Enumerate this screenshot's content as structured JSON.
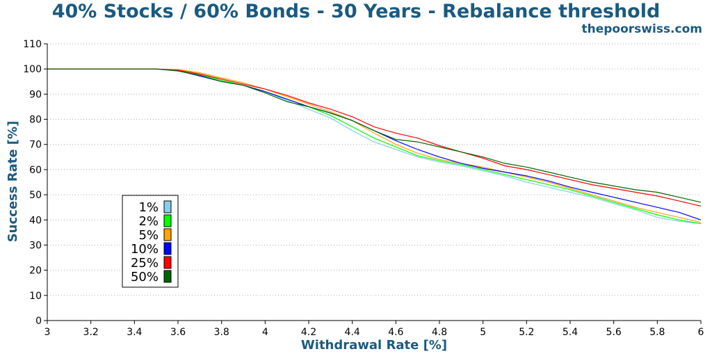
{
  "chart_data": {
    "type": "line",
    "title": "40% Stocks / 60% Bonds - 30 Years - Rebalance threshold",
    "watermark": "thepoorswiss.com",
    "xlabel": "Withdrawal Rate [%]",
    "ylabel": "Success Rate [%]",
    "xlim": [
      3,
      6
    ],
    "ylim": [
      0,
      110
    ],
    "xticks": [
      3,
      3.2,
      3.4,
      3.6,
      3.8,
      4,
      4.2,
      4.4,
      4.6,
      4.8,
      5,
      5.2,
      5.4,
      5.6,
      5.8,
      6
    ],
    "yticks": [
      0,
      10,
      20,
      30,
      40,
      50,
      60,
      70,
      80,
      90,
      100,
      110
    ],
    "grid": true,
    "legend_position": "lower-left",
    "series": [
      {
        "name": "1%",
        "color": "#87ceeb",
        "x": [
          3,
          3.5,
          3.6,
          3.7,
          3.8,
          3.9,
          4,
          4.1,
          4.2,
          4.3,
          4.4,
          4.5,
          4.6,
          4.7,
          4.8,
          4.9,
          5,
          5.1,
          5.2,
          5.3,
          5.4,
          5.5,
          5.6,
          5.7,
          5.8,
          5.9,
          6
        ],
        "y": [
          100,
          100,
          99.5,
          97.8,
          95.5,
          93.5,
          91,
          87.5,
          84,
          80.5,
          75.5,
          71,
          68,
          65,
          63,
          61.5,
          59.5,
          57.5,
          55,
          53,
          51,
          49,
          46.5,
          44,
          41,
          39.5,
          38.5
        ]
      },
      {
        "name": "2%",
        "color": "#00ff00",
        "x": [
          3,
          3.5,
          3.6,
          3.7,
          3.8,
          3.9,
          4,
          4.1,
          4.2,
          4.3,
          4.4,
          4.5,
          4.6,
          4.7,
          4.8,
          4.9,
          5,
          5.1,
          5.2,
          5.3,
          5.4,
          5.5,
          5.6,
          5.7,
          5.8,
          5.9,
          6
        ],
        "y": [
          100,
          100,
          99.5,
          98,
          95.5,
          93.5,
          91,
          88,
          85,
          81.5,
          77,
          72.5,
          69,
          65.5,
          63.5,
          62,
          60,
          58,
          56,
          54,
          52,
          49.5,
          47,
          44.5,
          42,
          40,
          38.5
        ]
      },
      {
        "name": "5%",
        "color": "#ffa500",
        "x": [
          3,
          3.5,
          3.6,
          3.7,
          3.8,
          3.9,
          4,
          4.1,
          4.2,
          4.3,
          4.4,
          4.5,
          4.6,
          4.7,
          4.8,
          4.9,
          5,
          5.1,
          5.2,
          5.3,
          5.4,
          5.5,
          5.6,
          5.7,
          5.8,
          5.9,
          6
        ],
        "y": [
          100,
          100,
          99.8,
          98.5,
          96.5,
          94.5,
          92,
          89,
          86,
          83,
          79.5,
          74.5,
          70,
          66.5,
          64,
          62.5,
          61,
          59,
          57,
          55,
          52.5,
          50,
          47.5,
          45,
          43,
          41,
          39
        ]
      },
      {
        "name": "10%",
        "color": "#0000ff",
        "x": [
          3,
          3.5,
          3.6,
          3.7,
          3.8,
          3.9,
          4,
          4.1,
          4.2,
          4.3,
          4.4,
          4.5,
          4.6,
          4.7,
          4.8,
          4.9,
          5,
          5.1,
          5.2,
          5.3,
          5.4,
          5.5,
          5.6,
          5.7,
          5.8,
          5.9,
          6
        ],
        "y": [
          100,
          100,
          99.3,
          97.2,
          95,
          93.5,
          91,
          88,
          85,
          82.5,
          79.5,
          75.5,
          71.5,
          68,
          65,
          62.5,
          60.5,
          59,
          57.5,
          55.5,
          53,
          51,
          49,
          47,
          45,
          43,
          40
        ]
      },
      {
        "name": "25%",
        "color": "#ff0000",
        "x": [
          3,
          3.5,
          3.6,
          3.7,
          3.8,
          3.9,
          4,
          4.1,
          4.2,
          4.3,
          4.4,
          4.5,
          4.6,
          4.7,
          4.8,
          4.9,
          5,
          5.1,
          5.2,
          5.3,
          5.4,
          5.5,
          5.6,
          5.7,
          5.8,
          5.9,
          6
        ],
        "y": [
          100,
          100,
          99.5,
          98,
          96,
          94,
          92,
          89.5,
          86.5,
          84,
          81,
          77,
          74.5,
          72.5,
          69.5,
          67,
          64.5,
          61.5,
          60,
          58,
          56,
          54,
          52.5,
          51,
          49.5,
          47.5,
          45.5
        ]
      },
      {
        "name": "50%",
        "color": "#006400",
        "x": [
          3,
          3.5,
          3.6,
          3.7,
          3.8,
          3.9,
          4,
          4.1,
          4.2,
          4.3,
          4.4,
          4.5,
          4.6,
          4.7,
          4.8,
          4.9,
          5,
          5.1,
          5.2,
          5.3,
          5.4,
          5.5,
          5.6,
          5.7,
          5.8,
          5.9,
          6
        ],
        "y": [
          100,
          100,
          99.2,
          97.5,
          95,
          93.5,
          90.5,
          87,
          85,
          82.5,
          79.5,
          75.5,
          72,
          71,
          69,
          67,
          65,
          62.5,
          61,
          59,
          57,
          55,
          53.5,
          52,
          51,
          49,
          47
        ]
      }
    ]
  }
}
